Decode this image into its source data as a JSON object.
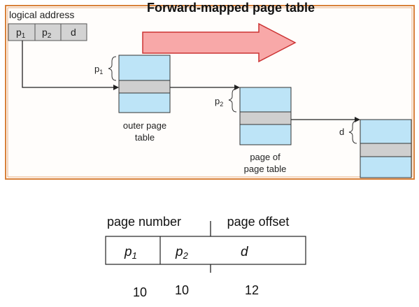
{
  "title": "Forward-mapped page table",
  "logical_address": {
    "label": "logical address",
    "fields": [
      {
        "base": "p",
        "sub": "1"
      },
      {
        "base": "p",
        "sub": "2"
      },
      {
        "base": "d",
        "sub": ""
      }
    ]
  },
  "outer_table": {
    "index_base": "p",
    "index_sub": "1",
    "caption_line1": "outer page",
    "caption_line2": "table"
  },
  "page_of_table": {
    "index_base": "p",
    "index_sub": "2",
    "caption_line1": "page of",
    "caption_line2": "page table"
  },
  "frame": {
    "offset_label": "d"
  },
  "format": {
    "header_left": "page number",
    "header_right": "page offset",
    "fields": [
      {
        "base": "p",
        "sub": "1"
      },
      {
        "base": "p",
        "sub": "2"
      },
      {
        "base": "d",
        "sub": ""
      }
    ],
    "bits": [
      "10",
      "10",
      "12"
    ]
  },
  "colors": {
    "border": "#d8813a",
    "table_fill": "#bde4f7",
    "row_fill": "#cfcfcf",
    "arrow_fill": "#f8a8a8",
    "arrow_stroke": "#cc3333",
    "field_fill": "#d3d3d3"
  }
}
